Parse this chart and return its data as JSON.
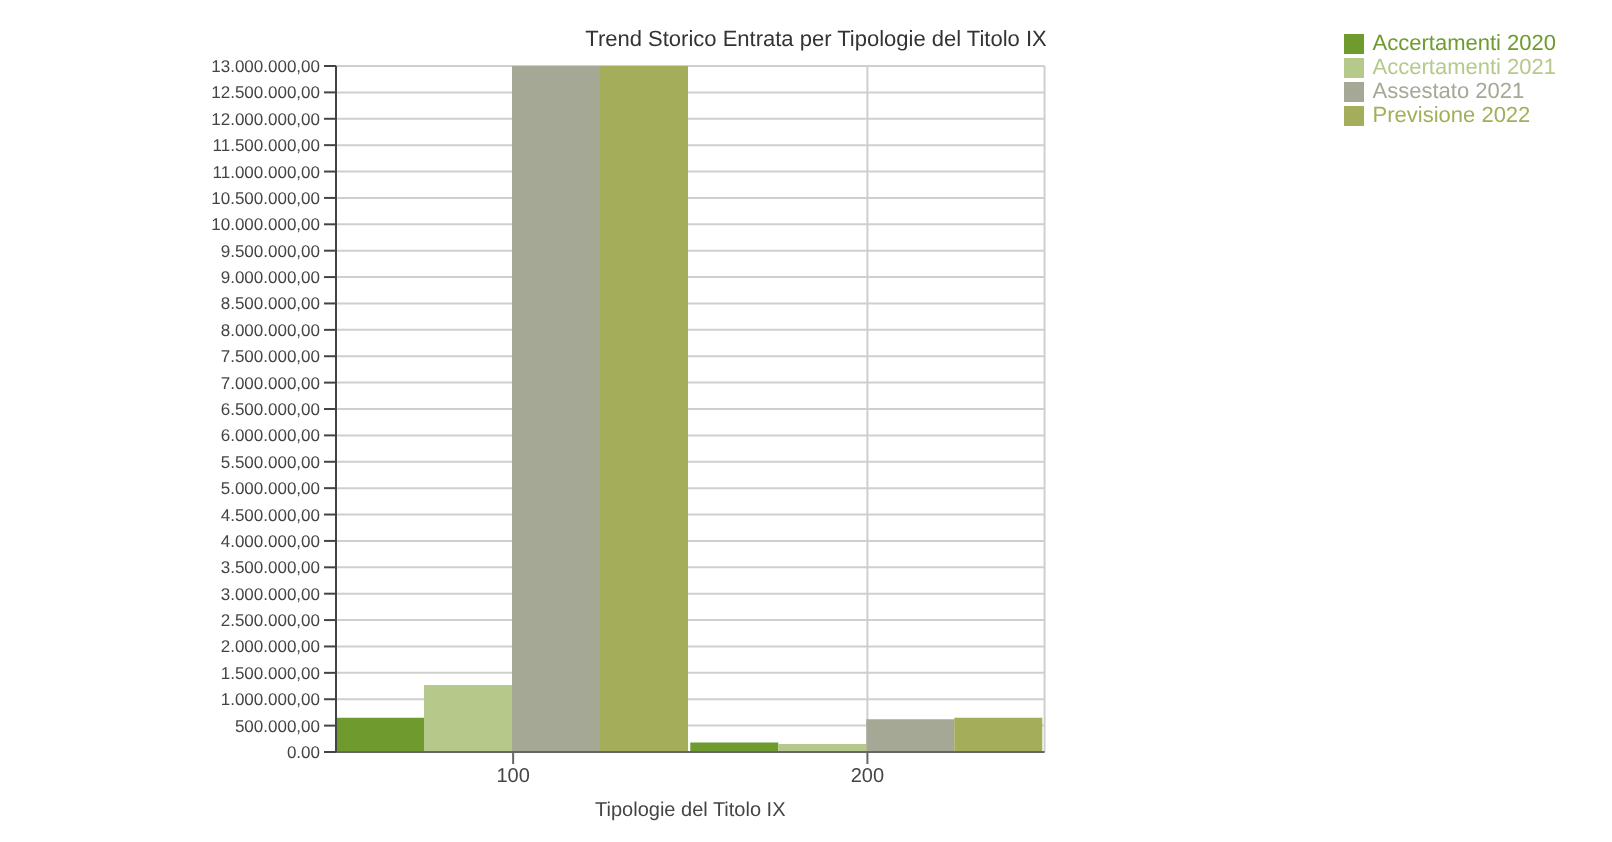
{
  "chart_data": {
    "type": "bar",
    "title": "Trend Storico Entrata per Tipologie del Titolo IX",
    "xlabel": "Tipologie del Titolo IX",
    "categories": [
      "100",
      "200"
    ],
    "series": [
      {
        "name": "Accertamenti 2020",
        "color": "#6e9a2e",
        "values": [
          650000,
          180000
        ]
      },
      {
        "name": "Accertamenti 2021",
        "color": "#b5c98a",
        "values": [
          1270000,
          150000
        ]
      },
      {
        "name": "Assestato 2021",
        "color": "#a4a894",
        "values": [
          13000000,
          620000
        ]
      },
      {
        "name": "Previsione 2022",
        "color": "#a3ad5a",
        "values": [
          13000000,
          650000
        ]
      }
    ],
    "ylim": [
      0,
      13000000
    ],
    "yticks": [
      {
        "value": 0,
        "label": "0.00"
      },
      {
        "value": 500000,
        "label": "500.000,00"
      },
      {
        "value": 1000000,
        "label": "1.000.000,00"
      },
      {
        "value": 1500000,
        "label": "1.500.000,00"
      },
      {
        "value": 2000000,
        "label": "2.000.000,00"
      },
      {
        "value": 2500000,
        "label": "2.500.000,00"
      },
      {
        "value": 3000000,
        "label": "3.000.000,00"
      },
      {
        "value": 3500000,
        "label": "3.500.000,00"
      },
      {
        "value": 4000000,
        "label": "4.000.000,00"
      },
      {
        "value": 4500000,
        "label": "4.500.000,00"
      },
      {
        "value": 5000000,
        "label": "5.000.000,00"
      },
      {
        "value": 5500000,
        "label": "5.500.000,00"
      },
      {
        "value": 6000000,
        "label": "6.000.000,00"
      },
      {
        "value": 6500000,
        "label": "6.500.000,00"
      },
      {
        "value": 7000000,
        "label": "7.000.000,00"
      },
      {
        "value": 7500000,
        "label": "7.500.000,00"
      },
      {
        "value": 8000000,
        "label": "8.000.000,00"
      },
      {
        "value": 8500000,
        "label": "8.500.000,00"
      },
      {
        "value": 9000000,
        "label": "9.000.000,00"
      },
      {
        "value": 9500000,
        "label": "9.500.000,00"
      },
      {
        "value": 10000000,
        "label": "10.000.000,00"
      },
      {
        "value": 10500000,
        "label": "10.500.000,00"
      },
      {
        "value": 11000000,
        "label": "11.000.000,00"
      },
      {
        "value": 11500000,
        "label": "11.500.000,00"
      },
      {
        "value": 12000000,
        "label": "12.000.000,00"
      },
      {
        "value": 12500000,
        "label": "12.500.000,00"
      },
      {
        "value": 13000000,
        "label": "13.000.000,00"
      }
    ],
    "grid": true,
    "legend": "top right"
  }
}
